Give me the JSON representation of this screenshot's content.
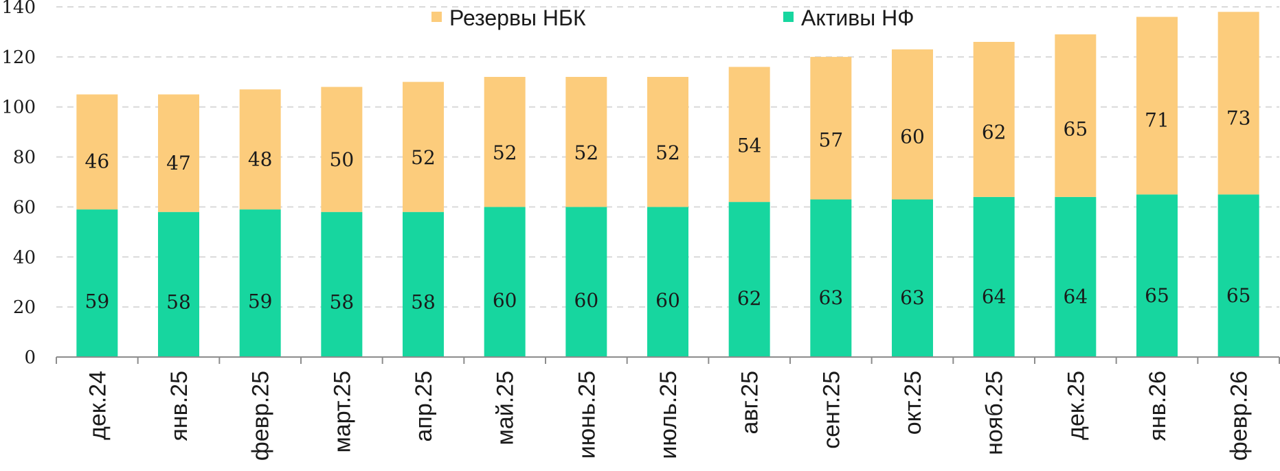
{
  "chart_data": {
    "type": "bar",
    "stacked": true,
    "categories": [
      "дек.24",
      "янв.25",
      "февр.25",
      "март.25",
      "апр.25",
      "май.25",
      "июнь.25",
      "июль.25",
      "авг.25",
      "сент.25",
      "окт.25",
      "нояб.25",
      "дек.25",
      "янв.26",
      "февр.26"
    ],
    "series": [
      {
        "name": "Активы НФ",
        "color": "#17d69f",
        "values": [
          59,
          58,
          59,
          58,
          58,
          60,
          60,
          60,
          62,
          63,
          63,
          64,
          64,
          65,
          65
        ],
        "labels": [
          "59",
          "58",
          "59",
          "58",
          "58",
          "60",
          "60",
          "60",
          "62",
          "63",
          "63",
          "64",
          "64",
          "65",
          "65"
        ]
      },
      {
        "name": "Резервы НБК",
        "color": "#fccc7c",
        "values": [
          46,
          47,
          48,
          50,
          52,
          52,
          52,
          52,
          54,
          57,
          60,
          62,
          65,
          71,
          73
        ],
        "labels": [
          "46",
          "47",
          "48",
          "50",
          "52",
          "52",
          "52",
          "52",
          "54",
          "57",
          "60",
          "62",
          "65",
          "71",
          "73"
        ]
      }
    ],
    "ylim": [
      0,
      140
    ],
    "yticks": [
      "0",
      "20",
      "40",
      "60",
      "80",
      "100",
      "120",
      "140"
    ],
    "grid": true,
    "legend_position": "top-center",
    "legend_order": [
      "Резервы НБК",
      "Активы НФ"
    ]
  }
}
